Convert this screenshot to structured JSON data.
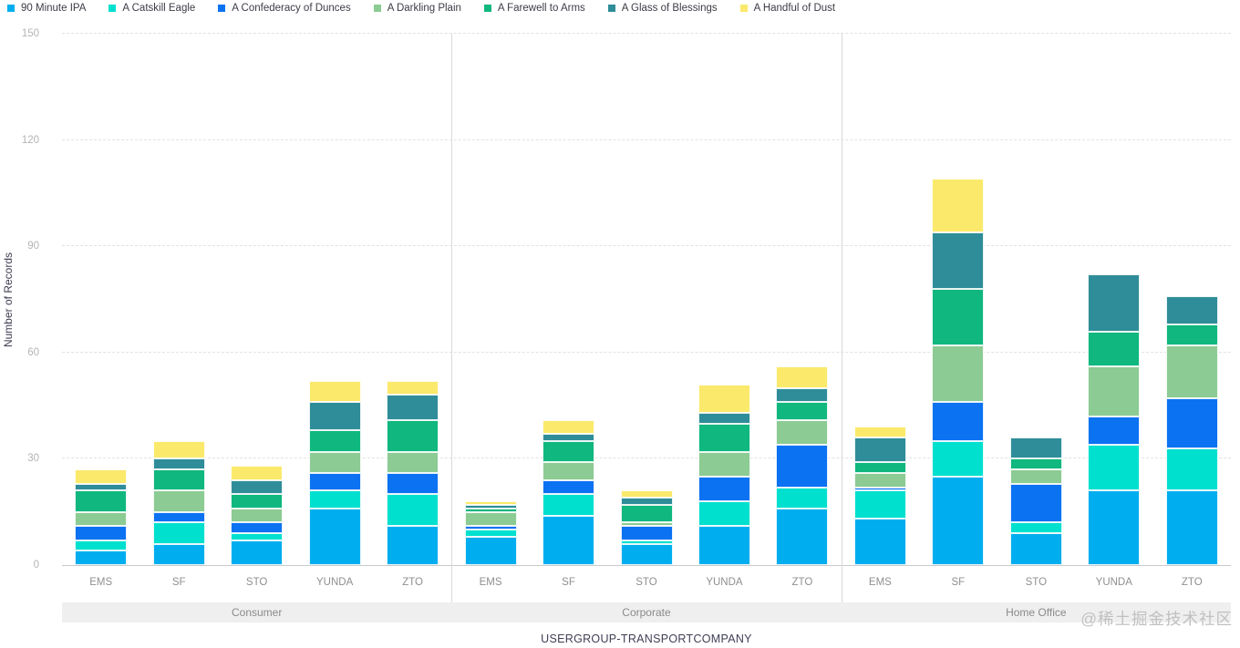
{
  "watermark": "@稀土掘金技术社区",
  "chart_data": {
    "type": "bar",
    "stacked": true,
    "title": "",
    "xlabel": "USERGROUP-TRANSPORTCOMPANY",
    "ylabel": "Number of Records",
    "ylim": [
      0,
      150
    ],
    "yticks": [
      0,
      30,
      60,
      90,
      120,
      150
    ],
    "grid": "horizontal-dashed",
    "legend_position": "top-left",
    "groups": [
      "Consumer",
      "Corporate",
      "Home Office"
    ],
    "categories": [
      "EMS",
      "SF",
      "STO",
      "YUNDA",
      "ZTO"
    ],
    "values_order": "groups x categories (Consumer EMS..ZTO, Corporate EMS..ZTO, Home Office EMS..ZTO), stacked bottom-to-top in series order",
    "series": [
      {
        "name": "90 Minute IPA",
        "color": "#00AEEF",
        "values": [
          4,
          6,
          7,
          16,
          11,
          8,
          14,
          6,
          11,
          16,
          13,
          25,
          9,
          21,
          21
        ]
      },
      {
        "name": "A Catskill Eagle",
        "color": "#00E0CF",
        "values": [
          3,
          6,
          2,
          5,
          9,
          2,
          6,
          1,
          7,
          6,
          8,
          10,
          3,
          13,
          12
        ]
      },
      {
        "name": "A Confederacy of Dunces",
        "color": "#0B72F2",
        "values": [
          4,
          3,
          3,
          5,
          6,
          1,
          4,
          4,
          7,
          12,
          1,
          11,
          11,
          8,
          14
        ]
      },
      {
        "name": "A Darkling Plain",
        "color": "#8CCB93",
        "values": [
          4,
          6,
          4,
          6,
          6,
          4,
          5,
          1,
          7,
          7,
          4,
          16,
          4,
          14,
          15
        ]
      },
      {
        "name": "A Farewell to Arms",
        "color": "#10B77F",
        "values": [
          6,
          6,
          4,
          6,
          9,
          1,
          6,
          5,
          8,
          5,
          3,
          16,
          3,
          10,
          6
        ]
      },
      {
        "name": "A Glass of Blessings",
        "color": "#2F8D99",
        "values": [
          2,
          3,
          4,
          8,
          7,
          1,
          2,
          2,
          3,
          4,
          7,
          16,
          6,
          16,
          8
        ]
      },
      {
        "name": "A Handful of Dust",
        "color": "#FBE96C",
        "values": [
          4,
          5,
          4,
          6,
          4,
          1,
          4,
          2,
          8,
          6,
          3,
          15,
          0,
          0,
          0
        ]
      }
    ],
    "bar_totals": [
      27,
      35,
      28,
      52,
      52,
      18,
      41,
      21,
      51,
      56,
      39,
      109,
      36,
      82,
      76
    ]
  }
}
